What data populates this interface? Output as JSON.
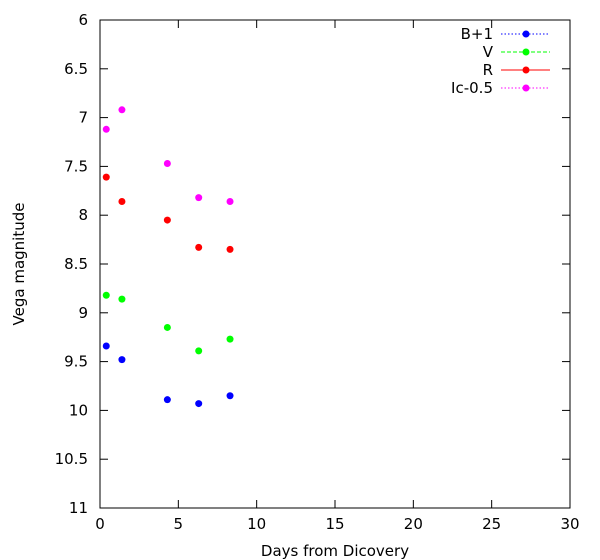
{
  "chart_data": {
    "type": "scatter",
    "title": "",
    "xlabel": "Days from Dicovery",
    "ylabel": "Vega magnitude",
    "xlim": [
      0,
      30
    ],
    "ylim": [
      6,
      11
    ],
    "y_inverted": true,
    "xticks": [
      0,
      5,
      10,
      15,
      20,
      25,
      30
    ],
    "yticks": [
      6,
      6.5,
      7,
      7.5,
      8,
      8.5,
      9,
      9.5,
      10,
      10.5,
      11
    ],
    "xtick_labels": [
      "0",
      "5",
      "10",
      "15",
      "20",
      "25",
      "30"
    ],
    "ytick_labels": [
      "6",
      "6.5",
      "7",
      "7.5",
      "8",
      "8.5",
      "9",
      "9.5",
      "10",
      "10.5",
      "11"
    ],
    "grid": false,
    "legend_position": "top-right",
    "series": [
      {
        "name": "B+1",
        "color": "#0000ff",
        "line_style": "dotted",
        "points": [
          [
            0.4,
            9.34
          ],
          [
            1.4,
            9.48
          ],
          [
            4.3,
            9.89
          ],
          [
            6.3,
            9.93
          ],
          [
            8.3,
            9.85
          ]
        ]
      },
      {
        "name": "V",
        "color": "#00ff00",
        "line_style": "dashed",
        "points": [
          [
            0.4,
            8.82
          ],
          [
            1.4,
            8.86
          ],
          [
            4.3,
            9.15
          ],
          [
            6.3,
            9.39
          ],
          [
            8.3,
            9.27
          ]
        ]
      },
      {
        "name": "R",
        "color": "#ff0000",
        "line_style": "solid",
        "points": [
          [
            0.4,
            7.61
          ],
          [
            1.4,
            7.86
          ],
          [
            4.3,
            8.05
          ],
          [
            6.3,
            8.33
          ],
          [
            8.3,
            8.35
          ]
        ]
      },
      {
        "name": "Ic-0.5",
        "color": "#ff00ff",
        "line_style": "dotted",
        "points": [
          [
            0.4,
            7.12
          ],
          [
            1.4,
            6.92
          ],
          [
            4.3,
            7.47
          ],
          [
            6.3,
            7.82
          ],
          [
            8.3,
            7.86
          ]
        ]
      }
    ]
  }
}
